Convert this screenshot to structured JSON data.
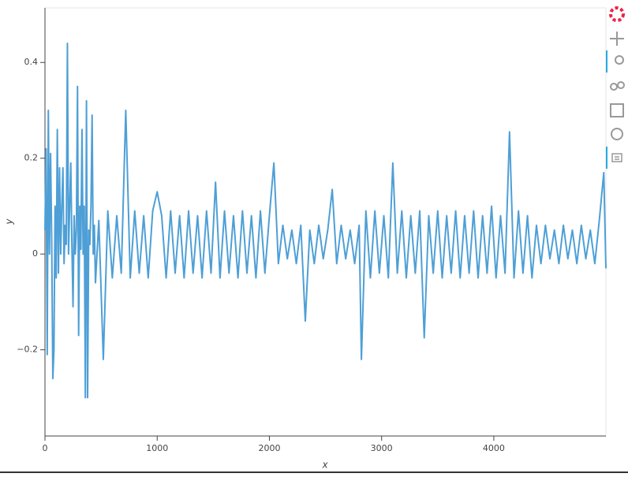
{
  "chart_data": {
    "type": "line",
    "x_label": "x",
    "y_label": "y",
    "series": [
      {
        "color": "#4e9fd6",
        "x": [
          0,
          10,
          20,
          30,
          40,
          50,
          60,
          70,
          80,
          90,
          100,
          110,
          120,
          130,
          140,
          150,
          160,
          170,
          180,
          190,
          200,
          210,
          220,
          230,
          240,
          250,
          260,
          270,
          280,
          290,
          300,
          310,
          320,
          330,
          340,
          350,
          360,
          370,
          380,
          390,
          400,
          410,
          420,
          430,
          440,
          450,
          480,
          520,
          560,
          600,
          640,
          680,
          720,
          760,
          800,
          840,
          880,
          920,
          960,
          1000,
          1040,
          1080,
          1120,
          1160,
          1200,
          1240,
          1280,
          1320,
          1360,
          1400,
          1440,
          1480,
          1520,
          1560,
          1600,
          1640,
          1680,
          1720,
          1760,
          1800,
          1840,
          1880,
          1920,
          1960,
          2000,
          2040,
          2080,
          2120,
          2160,
          2200,
          2240,
          2280,
          2320,
          2360,
          2400,
          2440,
          2480,
          2520,
          2560,
          2600,
          2640,
          2680,
          2720,
          2760,
          2800,
          2820,
          2860,
          2900,
          2940,
          2980,
          3020,
          3060,
          3100,
          3140,
          3180,
          3220,
          3260,
          3300,
          3340,
          3380,
          3420,
          3460,
          3500,
          3540,
          3580,
          3620,
          3660,
          3700,
          3740,
          3780,
          3820,
          3860,
          3900,
          3940,
          3980,
          4020,
          4060,
          4100,
          4140,
          4180,
          4220,
          4260,
          4300,
          4340,
          4380,
          4420,
          4460,
          4500,
          4540,
          4580,
          4620,
          4660,
          4700,
          4740,
          4780,
          4820,
          4860,
          4900,
          4940,
          4980,
          4999
        ],
        "values": [
          0.05,
          0.22,
          -0.21,
          0.3,
          0.0,
          0.21,
          0.03,
          -0.26,
          -0.2,
          0.1,
          -0.05,
          0.26,
          -0.04,
          0.18,
          0.0,
          0.1,
          0.18,
          -0.02,
          0.06,
          0.02,
          0.44,
          0.0,
          0.1,
          0.19,
          0.02,
          -0.11,
          0.08,
          0.0,
          0.05,
          0.35,
          -0.17,
          0.1,
          0.01,
          0.26,
          0.0,
          0.1,
          -0.3,
          0.32,
          -0.3,
          0.05,
          0.02,
          0.1,
          0.29,
          0.0,
          0.06,
          -0.06,
          0.07,
          -0.22,
          0.09,
          -0.05,
          0.08,
          -0.04,
          0.3,
          -0.05,
          0.09,
          -0.04,
          0.08,
          -0.05,
          0.09,
          0.13,
          0.08,
          -0.05,
          0.09,
          -0.04,
          0.08,
          -0.05,
          0.09,
          -0.04,
          0.08,
          -0.05,
          0.09,
          -0.04,
          0.15,
          -0.05,
          0.09,
          -0.04,
          0.08,
          -0.05,
          0.09,
          -0.04,
          0.08,
          -0.05,
          0.09,
          -0.04,
          0.08,
          0.19,
          -0.02,
          0.06,
          -0.01,
          0.05,
          -0.02,
          0.06,
          -0.14,
          0.05,
          -0.02,
          0.06,
          -0.01,
          0.05,
          0.135,
          -0.02,
          0.06,
          -0.01,
          0.05,
          -0.02,
          0.06,
          -0.22,
          0.09,
          -0.05,
          0.09,
          -0.04,
          0.08,
          -0.05,
          0.19,
          -0.04,
          0.09,
          -0.05,
          0.08,
          -0.04,
          0.09,
          -0.175,
          0.08,
          -0.04,
          0.09,
          -0.05,
          0.08,
          -0.04,
          0.09,
          -0.05,
          0.08,
          -0.04,
          0.09,
          -0.05,
          0.08,
          -0.04,
          0.1,
          -0.05,
          0.08,
          -0.04,
          0.255,
          -0.05,
          0.09,
          -0.04,
          0.08,
          -0.05,
          0.06,
          -0.02,
          0.06,
          -0.01,
          0.05,
          -0.02,
          0.06,
          -0.01,
          0.05,
          -0.02,
          0.06,
          -0.01,
          0.05,
          -0.02,
          0.07,
          0.17,
          -0.03
        ]
      }
    ],
    "xlim": [
      0,
      4999
    ],
    "ylim": [
      -0.38,
      0.514
    ],
    "xticks": [
      0,
      1000,
      2000,
      3000,
      4000
    ],
    "yticks": [
      {
        "value": -0.2,
        "label": "−0.2"
      },
      0,
      0.2,
      0.4
    ]
  }
}
